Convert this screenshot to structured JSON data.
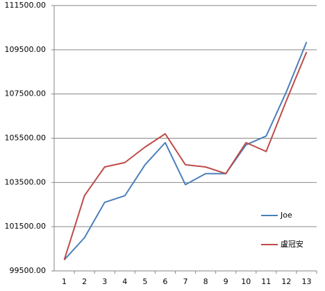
{
  "chart_data": {
    "type": "line",
    "categories": [
      "1",
      "2",
      "3",
      "4",
      "5",
      "6",
      "7",
      "8",
      "9",
      "10",
      "11",
      "12",
      "13"
    ],
    "series": [
      {
        "name": "Joe",
        "color": "#4a7ebb",
        "values": [
          100000,
          101000,
          102600,
          102900,
          104300,
          105300,
          103400,
          103900,
          103900,
          105200,
          105600,
          107600,
          109850
        ]
      },
      {
        "name": "盧冠安",
        "color": "#be4b48",
        "values": [
          100000,
          102900,
          104200,
          104400,
          105100,
          105700,
          104300,
          104200,
          103900,
          105300,
          104900,
          107200,
          109400
        ]
      }
    ],
    "ylim": [
      99500,
      111500
    ],
    "yticks": [
      {
        "value": 99500,
        "label": "99500.00"
      },
      {
        "value": 101500,
        "label": "101500.00"
      },
      {
        "value": 103500,
        "label": "103500.00"
      },
      {
        "value": 105500,
        "label": "105500.00"
      },
      {
        "value": 107500,
        "label": "107500.00"
      },
      {
        "value": 109500,
        "label": "109500.00"
      },
      {
        "value": 111500,
        "label": "111500.00"
      }
    ],
    "grid": true
  }
}
